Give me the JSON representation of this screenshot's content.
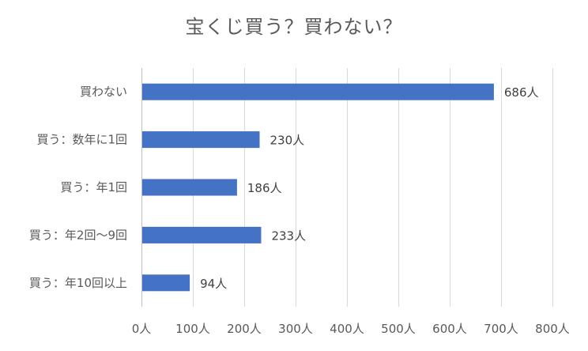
{
  "chart_data": {
    "type": "bar",
    "orientation": "horizontal",
    "title": "宝くじ買う？買わない？",
    "categories": [
      "買わない",
      "買う：数年に1回",
      "買う：年1回",
      "買う：年2回〜9回",
      "買う：年10回以上"
    ],
    "values": [
      686,
      230,
      186,
      233,
      94
    ],
    "data_labels": [
      "686人",
      "230人",
      "186人",
      "233人",
      "94人"
    ],
    "xlim": [
      0,
      800
    ],
    "x_ticks": [
      0,
      100,
      200,
      300,
      400,
      500,
      600,
      700,
      800
    ],
    "x_tick_labels": [
      "0人",
      "100人",
      "200人",
      "300人",
      "400人",
      "500人",
      "600人",
      "700人",
      "800人"
    ],
    "grid": "vertical",
    "legend": "none",
    "colors": {
      "bar": "#4472C4",
      "grid": "#D9D9D9",
      "text": "#595959",
      "label": "#404040"
    }
  }
}
